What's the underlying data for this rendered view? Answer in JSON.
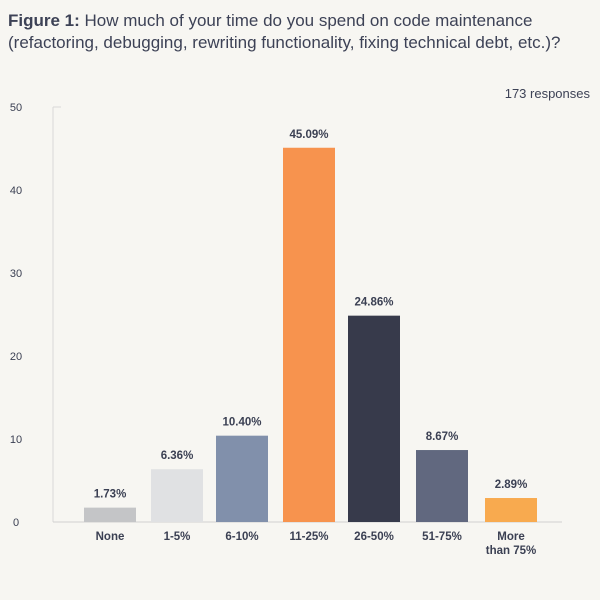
{
  "title": {
    "prefix": "Figure 1:",
    "line1": "How much of your time do you spend on code maintenance",
    "line2": "(refactoring, debugging, rewriting functionality, fixing technical debt, etc.)?"
  },
  "responses": "173 responses",
  "chart_data": {
    "type": "bar",
    "categories": [
      "None",
      "1-5%",
      "6-10%",
      "11-25%",
      "26-50%",
      "51-75%",
      "More than 75%"
    ],
    "category_lines": [
      [
        "None"
      ],
      [
        "1-5%"
      ],
      [
        "6-10%"
      ],
      [
        "11-25%"
      ],
      [
        "26-50%"
      ],
      [
        "51-75%"
      ],
      [
        "More",
        "than 75%"
      ]
    ],
    "values": [
      1.73,
      6.36,
      10.4,
      45.09,
      24.86,
      8.67,
      2.89
    ],
    "value_labels": [
      "1.73%",
      "6.36%",
      "10.40%",
      "45.09%",
      "24.86%",
      "8.67%",
      "2.89%"
    ],
    "colors": [
      "#c4c5c7",
      "#e0e1e3",
      "#8190ab",
      "#f7934e",
      "#373a4b",
      "#61687f",
      "#f8aa4f"
    ],
    "yticks": [
      0,
      10,
      20,
      30,
      40,
      50
    ],
    "ylim": [
      0,
      50
    ],
    "xlabel": "",
    "ylabel": "",
    "grid": false
  }
}
